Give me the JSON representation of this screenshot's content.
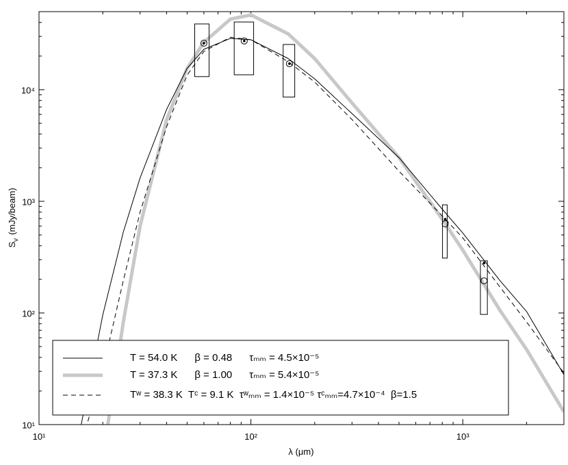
{
  "chart_data": {
    "type": "line",
    "xlabel": "λ  (μm)",
    "ylabel": [
      "S",
      "ν",
      "(mJy/beam)"
    ],
    "xscale": "log",
    "yscale": "log",
    "xlim": [
      10,
      3000
    ],
    "ylim": [
      10,
      50000
    ],
    "xticks": [
      {
        "value": 10,
        "label": "10¹"
      },
      {
        "value": 100,
        "label": "10²"
      },
      {
        "value": 1000,
        "label": "10³"
      }
    ],
    "yticks": [
      {
        "value": 10,
        "label": "10¹"
      },
      {
        "value": 100,
        "label": "10²"
      },
      {
        "value": 1000,
        "label": "10³"
      },
      {
        "value": 10000,
        "label": "10⁴"
      }
    ],
    "xminorticks": [
      20,
      30,
      40,
      50,
      60,
      70,
      80,
      90,
      200,
      300,
      400,
      500,
      600,
      700,
      800,
      900,
      2000,
      3000
    ],
    "yminorticks": [
      20,
      30,
      40,
      50,
      60,
      70,
      80,
      90,
      200,
      300,
      400,
      500,
      600,
      700,
      800,
      900,
      2000,
      3000,
      4000,
      5000,
      6000,
      7000,
      8000,
      9000,
      20000,
      30000,
      40000
    ],
    "x": [
      15,
      17,
      20,
      25,
      30,
      40,
      50,
      60,
      80,
      100,
      150,
      200,
      300,
      500,
      800,
      1000,
      1500,
      2000,
      3000
    ],
    "series": [
      {
        "name": "T = 54.0 K      β = 0.48      τₘₘ = 4.5×10⁻⁵",
        "color": "#000000",
        "width": 1,
        "dash": "none",
        "values": [
          6,
          20,
          96,
          530,
          1620,
          6640,
          15500,
          23000,
          28800,
          28000,
          19000,
          12500,
          6100,
          2460,
          850,
          520,
          194,
          103,
          28
        ]
      },
      {
        "name": "T = 37.3 K      β = 1.00      τₘₘ = 5.4×10⁻⁵",
        "color": "#c8c8c8",
        "width": 5,
        "dash": "none",
        "values": [
          null,
          null,
          5,
          83,
          600,
          5360,
          15500,
          26500,
          42800,
          46800,
          31600,
          19000,
          7600,
          2460,
          690,
          365,
          105,
          47,
          13
        ]
      },
      {
        "name": "Tʷ = 38.3 K  Tᶜ = 9.1 K  τʷₘₘ = 1.4×10⁻⁵ τᶜₘₘ=4.7×10⁻⁴  β=1.5",
        "color": "#000000",
        "width": 1,
        "dash": "7 5",
        "values": [
          null,
          10.7,
          31,
          195,
          800,
          4650,
          13500,
          22000,
          29500,
          28000,
          17800,
          11700,
          5400,
          1860,
          740,
          470,
          170,
          83,
          29
        ]
      }
    ],
    "points": {
      "x": [
        60,
        93,
        152,
        826,
        1260
      ],
      "values": [
        26100,
        27300,
        17100,
        628,
        194
      ],
      "measured": [
        26100,
        27300,
        17100,
        692,
        280
      ],
      "lower": [
        13100,
        13600,
        8580,
        310,
        97
      ],
      "upper": [
        38800,
        40400,
        25400,
        930,
        293
      ],
      "x_lo": [
        54.3,
        83.4,
        142,
        802,
        1211
      ],
      "x_hi": [
        63.5,
        103,
        161,
        844,
        1306
      ]
    }
  }
}
